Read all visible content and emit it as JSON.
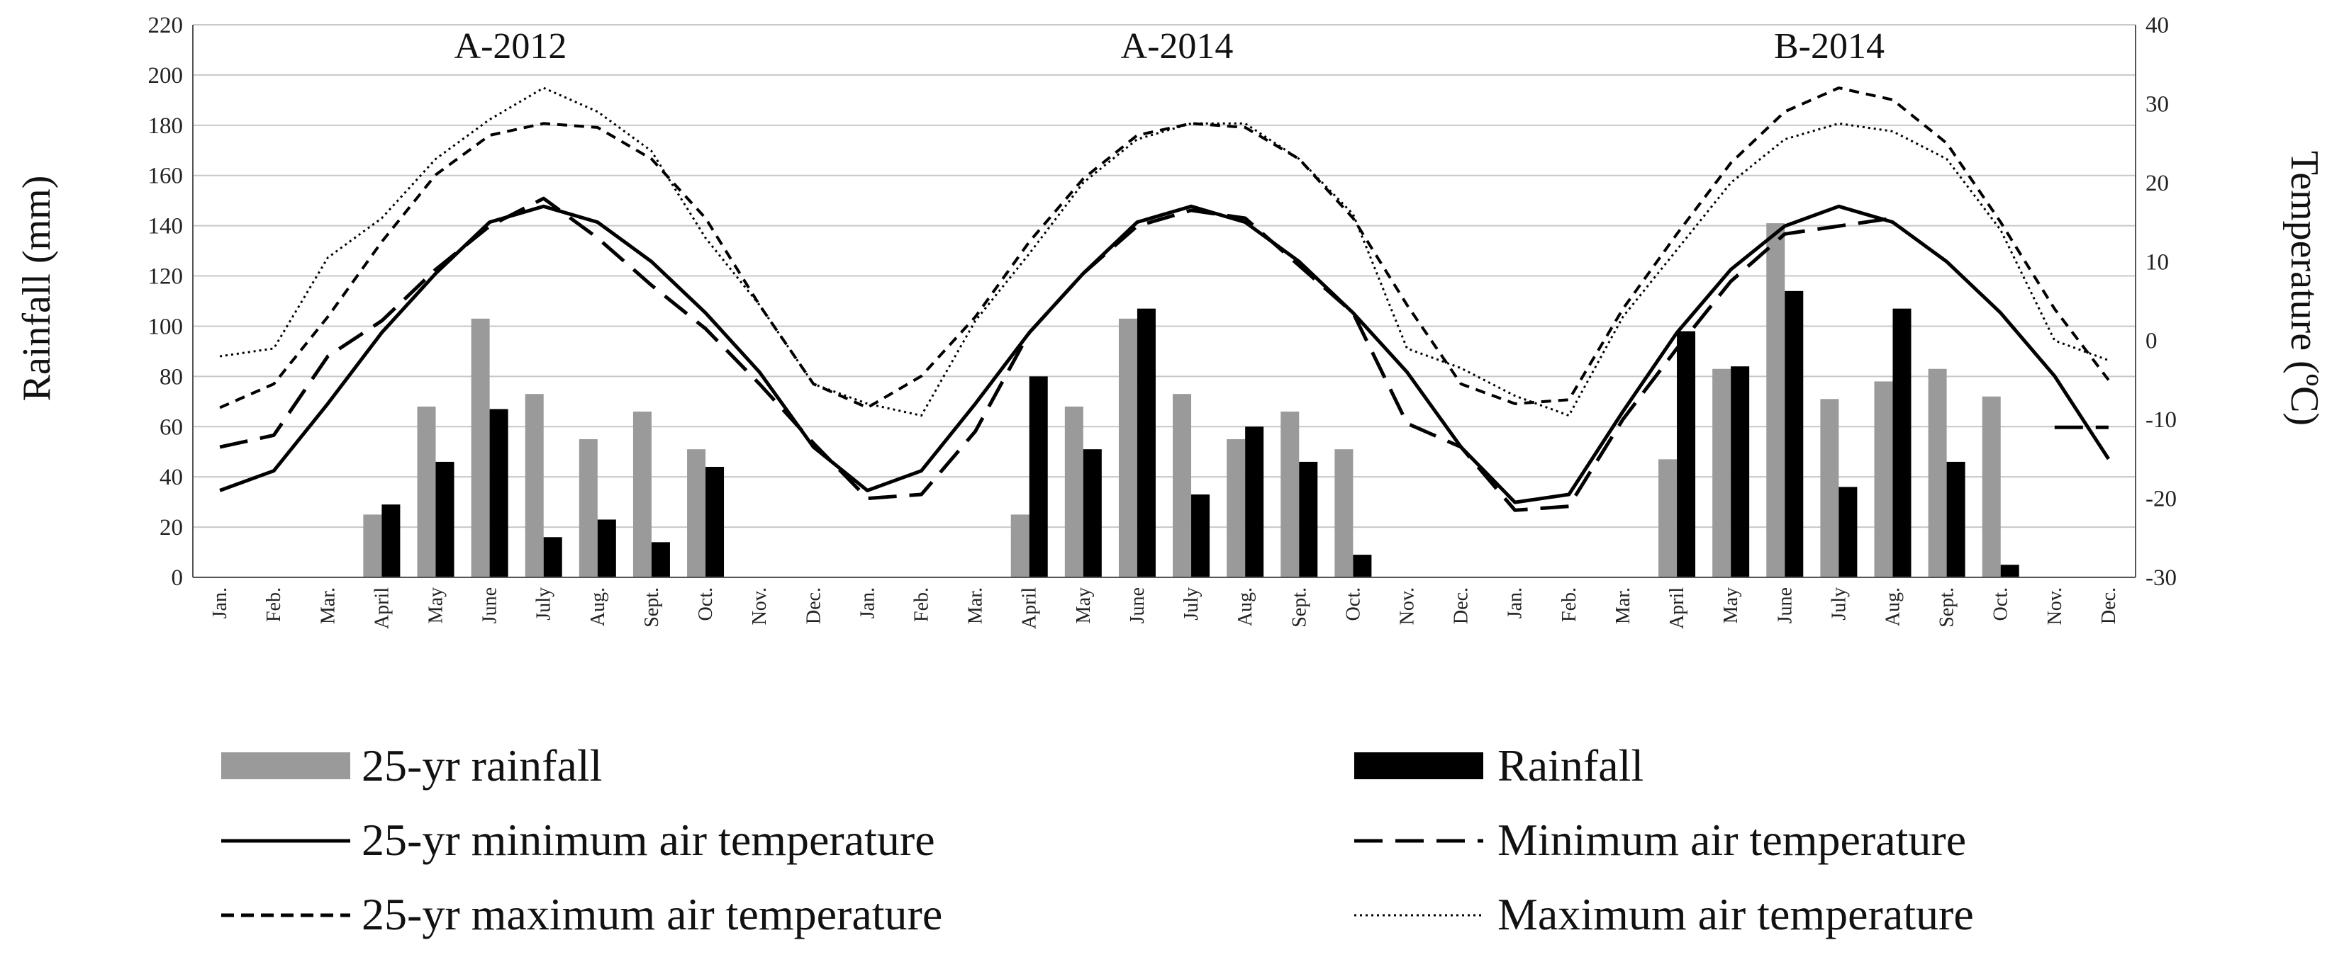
{
  "chart_data": {
    "type": "bar+line",
    "title": "",
    "panels": [
      "A-2012",
      "A-2014",
      "B-2014"
    ],
    "categories": [
      "Jan.",
      "Feb.",
      "Mar.",
      "April",
      "May",
      "June",
      "July",
      "Aug.",
      "Sept.",
      "Oct.",
      "Nov.",
      "Dec.",
      "Jan.",
      "Feb.",
      "Mar.",
      "April",
      "May",
      "June",
      "July",
      "Aug.",
      "Sept.",
      "Oct.",
      "Nov.",
      "Dec.",
      "Jan.",
      "Feb.",
      "Mar.",
      "April",
      "May",
      "June",
      "July",
      "Aug.",
      "Sept.",
      "Oct.",
      "Nov.",
      "Dec."
    ],
    "ylabel_left": "Rainfall (mm)",
    "ylabel_right": "Temperature (ºC)",
    "ylim_left": [
      0,
      220
    ],
    "yticks_left": [
      "0",
      "20",
      "40",
      "60",
      "80",
      "100",
      "120",
      "140",
      "160",
      "180",
      "200",
      "220"
    ],
    "ylim_right": [
      -30,
      40
    ],
    "yticks_right": [
      "-30",
      "-20",
      "-10",
      "0",
      "10",
      "20",
      "30",
      "40"
    ],
    "bar_series": [
      {
        "name": "25-yr rainfall",
        "color": "#9a9a9a",
        "values": [
          null,
          null,
          null,
          25,
          68,
          103,
          73,
          55,
          66,
          51,
          null,
          null,
          null,
          null,
          null,
          25,
          68,
          103,
          73,
          55,
          66,
          51,
          null,
          null,
          null,
          null,
          null,
          47,
          83,
          141,
          71,
          78,
          83,
          72,
          null,
          null
        ]
      },
      {
        "name": "Rainfall",
        "color": "#000000",
        "values": [
          null,
          null,
          null,
          29,
          46,
          67,
          16,
          23,
          14,
          44,
          null,
          null,
          null,
          null,
          null,
          80,
          51,
          107,
          33,
          60,
          46,
          9,
          null,
          null,
          null,
          null,
          null,
          98,
          84,
          114,
          36,
          107,
          46,
          5,
          null,
          null
        ]
      }
    ],
    "line_series": [
      {
        "name": "25-yr minimum air temperature",
        "style": "solid",
        "values": [
          -19,
          -16.5,
          -8,
          1,
          8.5,
          15,
          17,
          15,
          10,
          3.5,
          -4,
          -13.5,
          -19,
          -16.5,
          -8,
          1,
          8.5,
          15,
          17,
          15,
          10,
          3.5,
          -4,
          -13.5,
          -20.5,
          -19.5,
          -9,
          1,
          9,
          14.5,
          17,
          15,
          10,
          3.5,
          -4.5,
          -15
        ]
      },
      {
        "name": "Minimum air temperature",
        "style": "long-dash",
        "values": [
          -13.5,
          -12,
          -2,
          2.5,
          9,
          14.5,
          18,
          13,
          7,
          1.5,
          -5.5,
          -13,
          -20,
          -19.5,
          -11.5,
          1,
          8.5,
          14.5,
          16.5,
          15.5,
          9.5,
          3.5,
          -10.5,
          -13.5,
          -21.5,
          -21,
          -10,
          -1,
          7.5,
          13.5,
          14.5,
          15.5,
          null,
          null,
          -11,
          -11
        ]
      },
      {
        "name": "25-yr maximum air temperature",
        "style": "short-dash",
        "values": [
          -8.5,
          -5.5,
          3,
          12.5,
          21,
          26,
          27.5,
          27,
          23,
          15.5,
          4.5,
          -5.5,
          -8.5,
          -4.5,
          3,
          12.5,
          20.5,
          26,
          27.5,
          27,
          23,
          15.5,
          4.5,
          -5.5,
          -8,
          -7.5,
          4,
          13.5,
          22.5,
          29,
          32,
          30.5,
          25,
          15,
          4,
          -5
        ]
      },
      {
        "name": "Maximum air temperature",
        "style": "dotted",
        "values": [
          -2,
          -1,
          10.5,
          15.5,
          23,
          28,
          32,
          29,
          24,
          13,
          4.5,
          -5.5,
          -8,
          -9.5,
          2.5,
          11,
          20,
          25.5,
          27.5,
          27.5,
          23,
          16,
          -1,
          -3.5,
          -7,
          -9.5,
          3,
          11.5,
          20,
          25.5,
          27.5,
          26.5,
          23,
          14,
          0,
          -2.5
        ]
      }
    ],
    "legend": {
      "placement": "bottom",
      "items": [
        "25-yr rainfall",
        "Rainfall",
        "25-yr minimum air temperature",
        "Minimum air temperature",
        "25-yr maximum air temperature",
        "Maximum air temperature"
      ]
    }
  }
}
